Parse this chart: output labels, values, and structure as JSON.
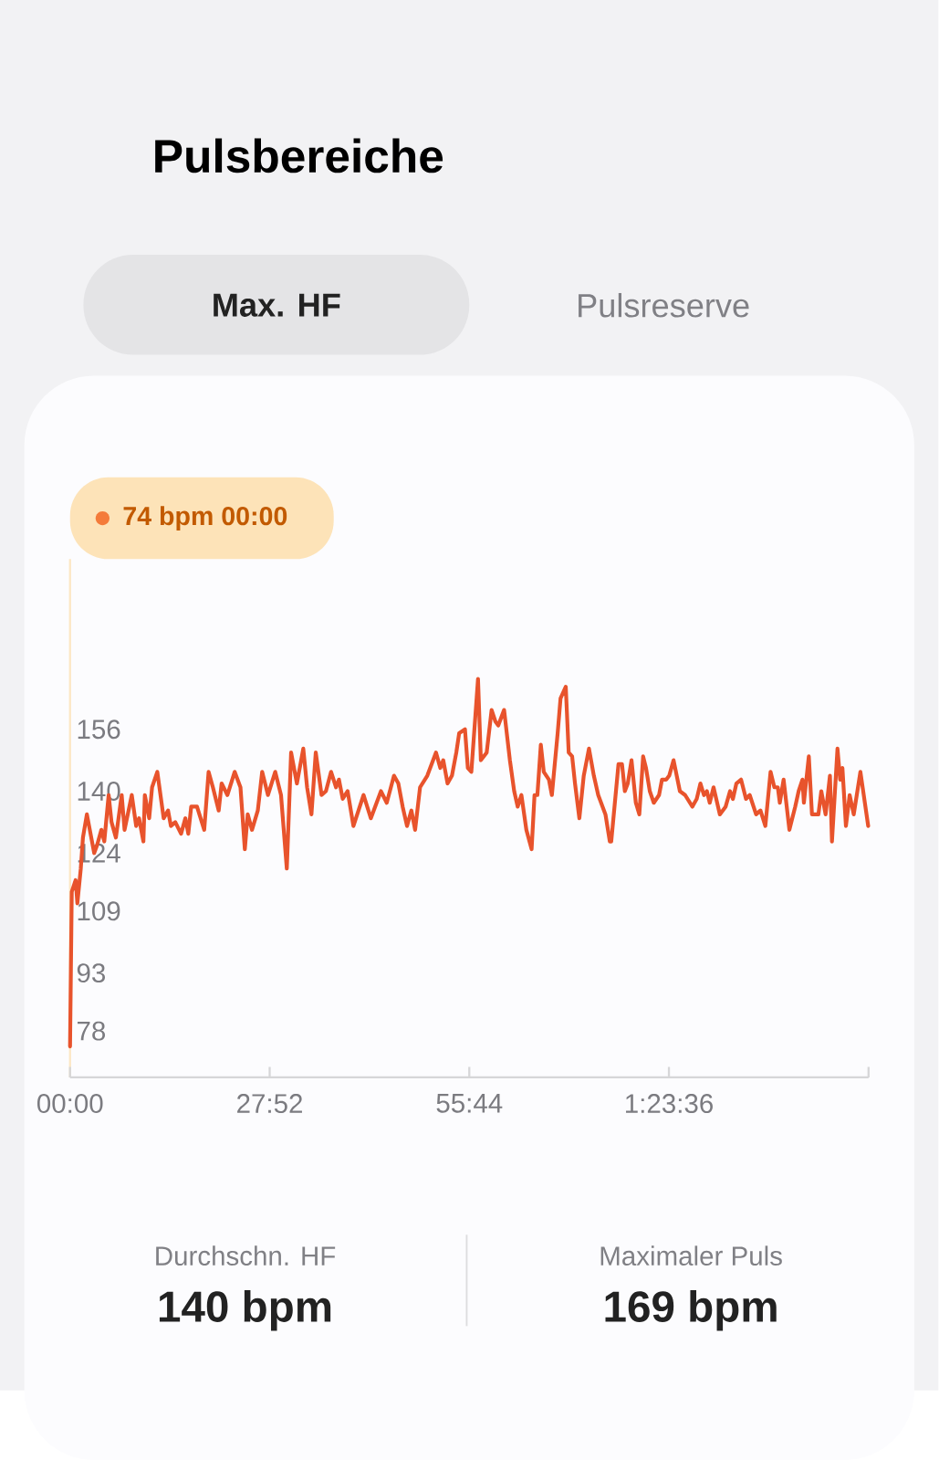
{
  "chart_data": {
    "type": "line",
    "title": "Pulsbereiche",
    "color": "#e8532c",
    "xlim": [
      0,
      111.4667
    ],
    "ylim": [
      66,
      200
    ],
    "xticks": [
      {
        "value": 0,
        "label": "00:00"
      },
      {
        "value": 27.8667,
        "label": "27:52"
      },
      {
        "value": 55.7333,
        "label": "55:44"
      },
      {
        "value": 83.6,
        "label": "1:23:36"
      },
      {
        "value": 111.4667,
        "label": null
      }
    ],
    "yticks": [
      78,
      93,
      109,
      124,
      140,
      156
    ],
    "x": [
      0,
      0.12,
      0.24,
      0.78,
      1.02,
      1.5,
      1.8,
      2.35,
      3.37,
      3.77,
      4.37,
      4.78,
      5.39,
      5.79,
      6.4,
      7.21,
      7.61,
      8.62,
      9.23,
      9.63,
      10.24,
      10.44,
      11.05,
      11.45,
      12.18,
      13.07,
      13.68,
      14.08,
      14.69,
      15.5,
      16.1,
      16.51,
      16.91,
      17.72,
      18.73,
      19.34,
      19.94,
      20.75,
      21.16,
      21.97,
      22.98,
      23.79,
      24.4,
      24.8,
      25.4,
      26.21,
      26.82,
      27.63,
      28.64,
      29.45,
      30.26,
      30.86,
      31.67,
      32.56,
      33.09,
      33.7,
      34.3,
      35.11,
      35.72,
      36.44,
      37.13,
      37.54,
      38.06,
      38.75,
      39.56,
      40.97,
      41.99,
      43.4,
      44.21,
      45.22,
      45.83,
      46.43,
      47.04,
      47.65,
      48.17,
      48.86,
      49.87,
      51.08,
      51.69,
      52.1,
      52.7,
      53.31,
      53.92,
      54.32,
      55.13,
      55.53,
      56.02,
      56.95,
      57.35,
      58.16,
      58.85,
      59.38,
      59.78,
      60.59,
      61.4,
      62,
      62.49,
      63.01,
      63.7,
      64.43,
      64.84,
      65.24,
      65.72,
      66.13,
      66.85,
      67.26,
      68.07,
      68.47,
      69.2,
      69.61,
      70.09,
      70.49,
      71.1,
      71.71,
      72.44,
      73.12,
      73.73,
      74.74,
      75.35,
      75.55,
      76.56,
      77.05,
      77.45,
      77.86,
      78.38,
      78.98,
      79.47,
      80,
      80.4,
      80.93,
      81.49,
      82.22,
      82.63,
      83.23,
      83.64,
      84.25,
      85.13,
      85.86,
      86.87,
      87.48,
      88,
      88.49,
      88.9,
      89.3,
      89.83,
      90.71,
      91.52,
      92.13,
      92.53,
      93.02,
      93.67,
      94.36,
      94.88,
      95.77,
      96.38,
      97.06,
      97.79,
      98.32,
      98.8,
      99.08,
      99.61,
      100.42,
      101.23,
      101.71,
      102.24,
      102.44,
      103.13,
      103.57,
      104.47,
      104.87,
      105.47,
      106.08,
      106.36,
      107.13,
      107.5,
      107.82,
      108.31,
      108.83,
      109.4,
      110.33,
      111.42
    ],
    "values": [
      74,
      94,
      114,
      117,
      111,
      120,
      128,
      134,
      124,
      126,
      130,
      127,
      139,
      132,
      128,
      139,
      130,
      139,
      131,
      133,
      127,
      139,
      133,
      141,
      145,
      133,
      135,
      131,
      132,
      129,
      133,
      129,
      136,
      136,
      130,
      145,
      141,
      135,
      142,
      139,
      145,
      141,
      125,
      134,
      130,
      135,
      145,
      139,
      145,
      139,
      120,
      150,
      142,
      151,
      141,
      134,
      150,
      139,
      140,
      145,
      141,
      143,
      138,
      140,
      131,
      139,
      133,
      140,
      137,
      144,
      142,
      136,
      131,
      135,
      130,
      141,
      144,
      150,
      146,
      148,
      142,
      144,
      150,
      155,
      156,
      146,
      145,
      169,
      148,
      150,
      161,
      158,
      157,
      161,
      148,
      140,
      136,
      139,
      130,
      125,
      139,
      139,
      152,
      145,
      143,
      139,
      155,
      164,
      167,
      150,
      149,
      142,
      133,
      144,
      151,
      144,
      139,
      134,
      127,
      127,
      147,
      147,
      140,
      142,
      148,
      137,
      134,
      149,
      146,
      140,
      137,
      139,
      143,
      143,
      144,
      148,
      140,
      139,
      136,
      138,
      142,
      139,
      140,
      137,
      141,
      134,
      136,
      140,
      138,
      142,
      143,
      138,
      139,
      134,
      135,
      131,
      145,
      141,
      141,
      137,
      143,
      130,
      136,
      140,
      143,
      137,
      149,
      134,
      134,
      140,
      134,
      144,
      127,
      151,
      143,
      146,
      131,
      139,
      134,
      145,
      131
    ],
    "annotations": [
      "Max. HF",
      "Pulsreserve",
      "74 bpm  00:00",
      "Durchschn. HF",
      "140 bpm",
      "Maximaler Puls",
      "169 bpm"
    ]
  }
}
